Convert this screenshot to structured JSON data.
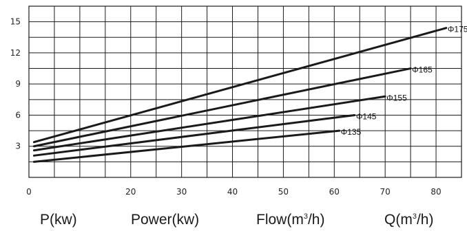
{
  "chart_data": {
    "type": "line",
    "xlim": [
      0,
      85
    ],
    "ylim": [
      0,
      16.5
    ],
    "x_ticks": [
      0,
      20,
      30,
      40,
      50,
      60,
      70,
      80
    ],
    "x_tick_labels": [
      "0",
      "20",
      "30",
      "40",
      "50",
      "60",
      "70",
      "80"
    ],
    "y_ticks": [
      3,
      6,
      9,
      12,
      15
    ],
    "y_tick_labels": [
      "3",
      "6",
      "9",
      "12",
      "15"
    ],
    "grid": true,
    "series": [
      {
        "name": "Φ135",
        "x": [
          1,
          61
        ],
        "y": [
          1.5,
          4.5
        ]
      },
      {
        "name": "Φ145",
        "x": [
          1,
          64
        ],
        "y": [
          2.1,
          6.0
        ]
      },
      {
        "name": "Φ155",
        "x": [
          1,
          70
        ],
        "y": [
          2.6,
          7.8
        ]
      },
      {
        "name": "Φ165",
        "x": [
          1,
          75
        ],
        "y": [
          3.0,
          10.5
        ]
      },
      {
        "name": "Φ175",
        "x": [
          1,
          82
        ],
        "y": [
          3.4,
          14.4
        ]
      }
    ]
  },
  "bottom_labels": {
    "power_short": "P(kw)",
    "power_long": "Power(kw)",
    "flow_prefix": "Flow(m",
    "flow_sup": "3",
    "flow_suffix": "/h)",
    "q_prefix": "Q(m",
    "q_sup": "3",
    "q_suffix": "/h)"
  }
}
